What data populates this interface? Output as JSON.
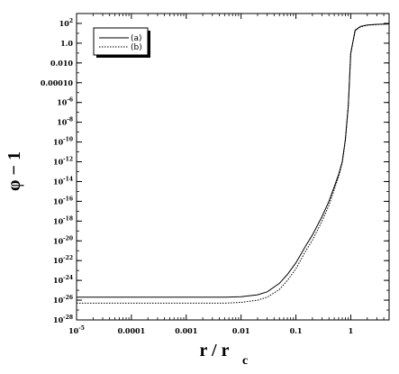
{
  "chart_data": {
    "type": "line",
    "title": "",
    "xlabel": {
      "main": "r / r",
      "sub": "c"
    },
    "ylabel": "φ − 1",
    "x_scale": "log",
    "y_scale": "log",
    "xlim": [
      1e-05,
      5
    ],
    "ylim": [
      1e-28,
      1000
    ],
    "grid": false,
    "legend_position": "top-left",
    "x_ticks": [
      {
        "value": 1e-05,
        "base": "10",
        "exp": "-5"
      },
      {
        "value": 0.0001,
        "label": "0.0001"
      },
      {
        "value": 0.001,
        "label": "0.001"
      },
      {
        "value": 0.01,
        "label": "0.01"
      },
      {
        "value": 0.1,
        "label": "0.1"
      },
      {
        "value": 1,
        "label": "1"
      }
    ],
    "y_ticks": [
      {
        "value": 1e-28,
        "base": "10",
        "exp": "-28"
      },
      {
        "value": 1e-26,
        "base": "10",
        "exp": "-26"
      },
      {
        "value": 1e-24,
        "base": "10",
        "exp": "-24"
      },
      {
        "value": 1e-22,
        "base": "10",
        "exp": "-22"
      },
      {
        "value": 1e-20,
        "base": "10",
        "exp": "-20"
      },
      {
        "value": 1e-18,
        "base": "10",
        "exp": "-18"
      },
      {
        "value": 1e-16,
        "base": "10",
        "exp": "-16"
      },
      {
        "value": 1e-14,
        "base": "10",
        "exp": "-14"
      },
      {
        "value": 1e-12,
        "base": "10",
        "exp": "-12"
      },
      {
        "value": 1e-10,
        "base": "10",
        "exp": "-10"
      },
      {
        "value": 1e-08,
        "base": "10",
        "exp": "-8"
      },
      {
        "value": 1e-06,
        "base": "10",
        "exp": "-6"
      },
      {
        "value": 0.0001,
        "label": "0.00010"
      },
      {
        "value": 0.01,
        "label": "0.010"
      },
      {
        "value": 1,
        "label": "1.0"
      },
      {
        "value": 100,
        "base": "10",
        "exp": "2"
      }
    ],
    "series": [
      {
        "name": "(a)",
        "style": "solid",
        "color": "#000000",
        "x": [
          1e-05,
          0.0001,
          0.001,
          0.005,
          0.01,
          0.02,
          0.03,
          0.05,
          0.07,
          0.1,
          0.15,
          0.2,
          0.3,
          0.4,
          0.5,
          0.6,
          0.7,
          0.8,
          0.9,
          1.0,
          1.2,
          1.5,
          2,
          3,
          5
        ],
        "y": [
          2e-26,
          2e-26,
          2e-26,
          2e-26,
          2.2e-26,
          3.5e-26,
          7e-26,
          5e-25,
          4e-24,
          6e-23,
          3e-21,
          4e-20,
          3e-18,
          1e-16,
          3e-15,
          5e-14,
          1e-12,
          2e-10,
          5e-07,
          0.1,
          20,
          50,
          70,
          80,
          90
        ]
      },
      {
        "name": "(b)",
        "style": "dotted",
        "color": "#000000",
        "x": [
          1e-05,
          0.0001,
          0.001,
          0.005,
          0.01,
          0.02,
          0.03,
          0.05,
          0.07,
          0.1,
          0.15,
          0.2,
          0.3,
          0.4,
          0.5,
          0.6,
          0.7,
          0.8,
          0.9,
          1.0,
          1.2,
          1.5,
          2,
          3,
          5
        ],
        "y": [
          5e-27,
          5e-27,
          5e-27,
          5e-27,
          6e-27,
          1e-26,
          2e-26,
          1.2e-25,
          1e-24,
          1.5e-23,
          9e-22,
          1.2e-20,
          1e-18,
          4e-17,
          1.5e-15,
          3e-14,
          8e-13,
          1.5e-10,
          4e-07,
          0.08,
          18,
          45,
          65,
          78,
          88
        ]
      }
    ]
  }
}
